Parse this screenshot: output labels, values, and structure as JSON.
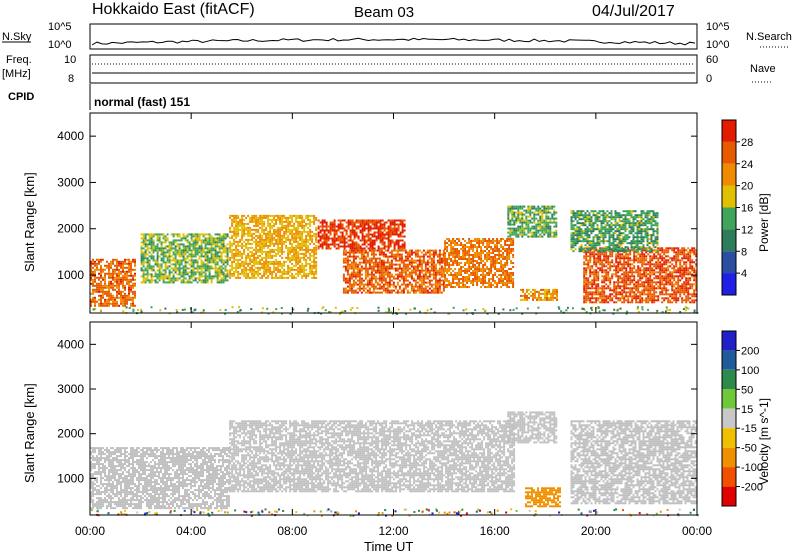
{
  "header": {
    "site": "Hokkaido East (fitACF)",
    "beam": "Beam 03",
    "date": "04/Jul/2017"
  },
  "strips": {
    "nsky_label": "N.Sky",
    "nsearch_label": "N.Search",
    "noise_ticks": [
      "10^5",
      "10^0"
    ],
    "freq_label_1": "Freq.",
    "freq_label_2": "[MHz]",
    "freq_ticks": [
      "10",
      "8"
    ],
    "nave_label": "Nave",
    "nave_ticks": [
      "60",
      "0"
    ],
    "cpid_label": "CPID",
    "cpid_value": "normal (fast) 151"
  },
  "colors": {
    "power_scale": [
      "#1f1fe6",
      "#2a4fa0",
      "#2e7d5a",
      "#3fa55a",
      "#e0c000",
      "#f08a00",
      "#e85a00",
      "#e31b00"
    ],
    "velocity_scale": [
      "#2020c8",
      "#1f5a9a",
      "#2e8a4a",
      "#6ec83a",
      "#c8c8c8",
      "#f0c000",
      "#f09000",
      "#f05000",
      "#e00000"
    ],
    "ground_scatter": "#c0c0c0"
  },
  "chart_data": [
    {
      "type": "heatmap",
      "title": "",
      "xlabel": "Time UT",
      "ylabel": "Slant Range [km]",
      "xticks": [
        "00:00",
        "04:00",
        "08:00",
        "12:00",
        "16:00",
        "20:00",
        "00:00"
      ],
      "xlim_hours": [
        0,
        24
      ],
      "yticks": [
        1000,
        2000,
        3000,
        4000
      ],
      "ylim": [
        180,
        4500
      ],
      "colorbar": {
        "label": "Power [dB]",
        "ticks": [
          4,
          8,
          12,
          16,
          20,
          24,
          28
        ],
        "range": [
          0,
          32
        ]
      },
      "regions": [
        {
          "t0": 0.0,
          "t1": 1.8,
          "r0": 300,
          "r1": 1350,
          "level": 25
        },
        {
          "t0": 2.0,
          "t1": 5.5,
          "r0": 800,
          "r1": 1900,
          "level": 15
        },
        {
          "t0": 5.5,
          "t1": 9.0,
          "r0": 900,
          "r1": 2300,
          "level": 20
        },
        {
          "t0": 9.0,
          "t1": 12.5,
          "r0": 1550,
          "r1": 2200,
          "level": 29
        },
        {
          "t0": 10.0,
          "t1": 14.0,
          "r0": 600,
          "r1": 1550,
          "level": 26
        },
        {
          "t0": 14.0,
          "t1": 16.8,
          "r0": 700,
          "r1": 1800,
          "level": 24
        },
        {
          "t0": 16.5,
          "t1": 18.5,
          "r0": 1800,
          "r1": 2500,
          "level": 14
        },
        {
          "t0": 17.0,
          "t1": 18.5,
          "r0": 450,
          "r1": 700,
          "level": 22
        },
        {
          "t0": 19.5,
          "t1": 24.0,
          "r0": 400,
          "r1": 1600,
          "level": 27
        },
        {
          "t0": 19.0,
          "t1": 22.5,
          "r0": 1500,
          "r1": 2400,
          "level": 13
        }
      ]
    },
    {
      "type": "heatmap",
      "title": "",
      "xlabel": "Time UT",
      "ylabel": "Slant Range [km]",
      "xticks": [
        "00:00",
        "04:00",
        "08:00",
        "12:00",
        "16:00",
        "20:00",
        "00:00"
      ],
      "xlim_hours": [
        0,
        24
      ],
      "yticks": [
        1000,
        2000,
        3000,
        4000
      ],
      "ylim": [
        180,
        4500
      ],
      "colorbar": {
        "label": "Velocity [m s^-1]",
        "ticks": [
          200,
          100,
          50,
          15,
          -15,
          -50,
          -100,
          -200
        ],
        "range": [
          -250,
          250
        ]
      },
      "regions": [
        {
          "t0": 0.0,
          "t1": 5.5,
          "r0": 300,
          "r1": 1700,
          "level": 0
        },
        {
          "t0": 5.5,
          "t1": 16.8,
          "r0": 700,
          "r1": 2300,
          "level": 0
        },
        {
          "t0": 16.5,
          "t1": 18.5,
          "r0": 1800,
          "r1": 2500,
          "level": 0
        },
        {
          "t0": 17.2,
          "t1": 18.6,
          "r0": 350,
          "r1": 800,
          "level": -100
        },
        {
          "t0": 19.0,
          "t1": 24.0,
          "r0": 400,
          "r1": 2300,
          "level": 0
        }
      ]
    }
  ]
}
